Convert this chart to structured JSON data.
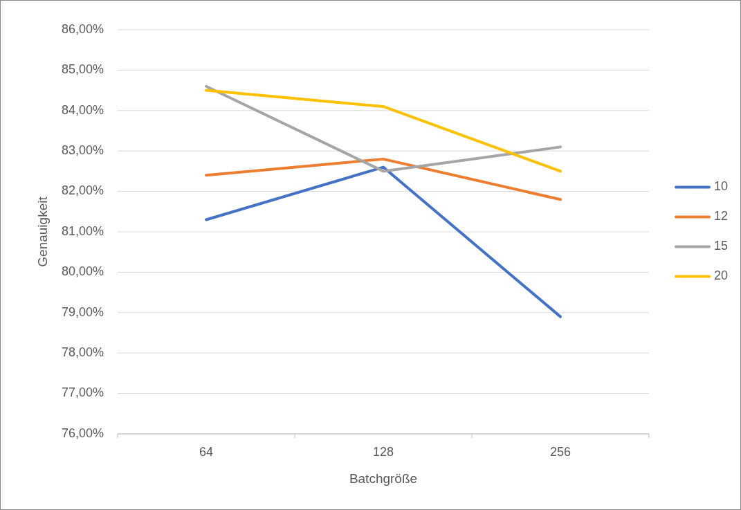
{
  "chart_data": {
    "type": "line",
    "xlabel": "Batchgröße",
    "ylabel": "Genauigkeit",
    "categories": [
      "64",
      "128",
      "256"
    ],
    "series": [
      {
        "name": "10",
        "color": "#4472c4",
        "values": [
          81.3,
          82.6,
          78.9
        ]
      },
      {
        "name": "12",
        "color": "#ed7d31",
        "values": [
          82.4,
          82.8,
          81.8
        ]
      },
      {
        "name": "15",
        "color": "#a5a5a5",
        "values": [
          84.6,
          82.5,
          83.1
        ]
      },
      {
        "name": "20",
        "color": "#ffc000",
        "values": [
          84.5,
          84.1,
          82.5
        ]
      }
    ],
    "ylim": [
      76,
      86
    ],
    "yticks": [
      {
        "value": 76,
        "label": "76,00%"
      },
      {
        "value": 77,
        "label": "77,00%"
      },
      {
        "value": 78,
        "label": "78,00%"
      },
      {
        "value": 79,
        "label": "79,00%"
      },
      {
        "value": 80,
        "label": "80,00%"
      },
      {
        "value": 81,
        "label": "81,00%"
      },
      {
        "value": 82,
        "label": "82,00%"
      },
      {
        "value": 83,
        "label": "83,00%"
      },
      {
        "value": 84,
        "label": "84,00%"
      },
      {
        "value": 85,
        "label": "85,00%"
      },
      {
        "value": 86,
        "label": "86,00%"
      }
    ],
    "grid": "y",
    "legend": "right",
    "line_style": "solid"
  }
}
